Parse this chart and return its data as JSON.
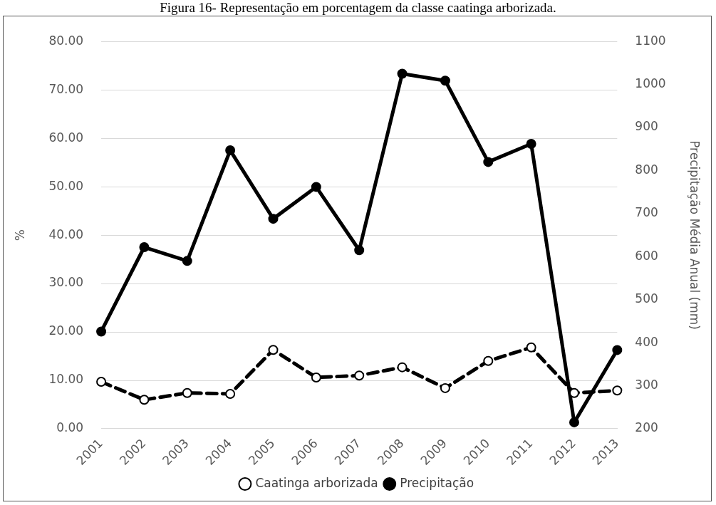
{
  "chart_data": {
    "type": "line",
    "title": "Figura 16- Representação em porcentagem da classe caatinga arborizada.",
    "ylabel": "%",
    "y2label": "Precipitação Média Anual (mm)",
    "categories": [
      "2001",
      "2002",
      "2003",
      "2004",
      "2005",
      "2006",
      "2007",
      "2008",
      "2009",
      "2010",
      "2011",
      "2012",
      "2013"
    ],
    "series": [
      {
        "name": "Caatinga arborizada",
        "color": "#000000",
        "line_style": "dashed",
        "values": [
          9.7,
          6.0,
          7.4,
          7.2,
          16.3,
          10.6,
          11.0,
          12.7,
          8.4,
          14.0,
          16.8,
          7.4,
          7.9
        ]
      },
      {
        "name": "Precipitação",
        "color": "#000000",
        "axis": "y2",
        "line_style": "solid",
        "values": [
          426,
          622,
          590,
          847,
          688,
          762,
          615,
          1025,
          1009,
          820,
          862,
          215,
          383
        ]
      }
    ],
    "ylim": [
      0,
      80
    ],
    "yticks": [
      {
        "value": 0,
        "label": "0.00"
      },
      {
        "value": 10,
        "label": "10.00"
      },
      {
        "value": 20,
        "label": "20.00"
      },
      {
        "value": 30,
        "label": "30.00"
      },
      {
        "value": 40,
        "label": "40.00"
      },
      {
        "value": 50,
        "label": "50.00"
      },
      {
        "value": 60,
        "label": "60.00"
      },
      {
        "value": 70,
        "label": "70.00"
      },
      {
        "value": 80,
        "label": "80.00"
      }
    ],
    "y2lim": [
      200,
      1100
    ],
    "y2ticks": [
      200,
      300,
      400,
      500,
      600,
      700,
      800,
      900,
      1000,
      1100
    ],
    "grid": "y",
    "legend": "bottom",
    "marker": "circle"
  }
}
